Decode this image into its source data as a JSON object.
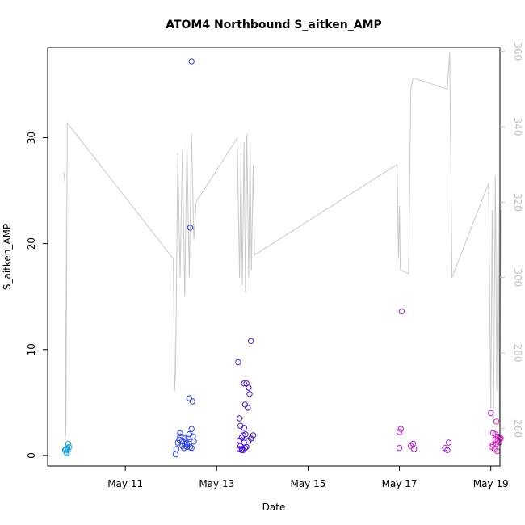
{
  "chart_data": {
    "type": "scatter",
    "title": "ATOM4 Northbound S_aitken_AMP",
    "xlabel": "Date",
    "ylabel": "S_aitken_AMP",
    "x_unit": "days since 2000-05-10 (May 11 = 1)",
    "xlim": [
      -0.7,
      9.2
    ],
    "ylim": [
      -1.0,
      38.5
    ],
    "y2lim": [
      250.0,
      361.0
    ],
    "x_ticks": [
      {
        "value": 1,
        "label": "May 11"
      },
      {
        "value": 3,
        "label": "May 13"
      },
      {
        "value": 5,
        "label": "May 15"
      },
      {
        "value": 7,
        "label": "May 17"
      },
      {
        "value": 9,
        "label": "May 19"
      }
    ],
    "y_ticks": [
      0,
      10,
      20,
      30
    ],
    "y2_ticks": [
      260,
      280,
      300,
      320,
      340,
      360
    ],
    "colors": {
      "line": "#c8c8c8",
      "frame": "#000000",
      "right_axis": "#c0c0c0"
    },
    "line_series": [
      [
        -0.35,
        328
      ],
      [
        -0.32,
        325
      ],
      [
        -0.3,
        258
      ],
      [
        -0.27,
        341
      ],
      [
        2.05,
        305
      ],
      [
        2.08,
        270
      ],
      [
        2.1,
        275
      ],
      [
        2.15,
        333
      ],
      [
        2.2,
        300
      ],
      [
        2.25,
        334
      ],
      [
        2.3,
        295
      ],
      [
        2.35,
        336
      ],
      [
        2.4,
        300
      ],
      [
        2.45,
        338
      ],
      [
        2.5,
        310
      ],
      [
        2.55,
        320
      ],
      [
        3.45,
        337
      ],
      [
        3.5,
        300
      ],
      [
        3.53,
        333
      ],
      [
        3.56,
        298
      ],
      [
        3.6,
        336
      ],
      [
        3.63,
        296
      ],
      [
        3.66,
        338
      ],
      [
        3.7,
        300
      ],
      [
        3.73,
        336
      ],
      [
        3.76,
        302
      ],
      [
        3.8,
        330
      ],
      [
        3.83,
        306
      ],
      [
        6.95,
        330
      ],
      [
        6.98,
        305
      ],
      [
        7.0,
        319
      ],
      [
        7.02,
        302
      ],
      [
        7.2,
        301
      ],
      [
        7.25,
        350
      ],
      [
        7.3,
        353
      ],
      [
        8.05,
        350
      ],
      [
        8.1,
        360
      ],
      [
        8.15,
        300
      ],
      [
        8.95,
        325
      ],
      [
        9.0,
        265
      ],
      [
        9.03,
        318
      ],
      [
        9.06,
        262
      ],
      [
        9.1,
        327
      ],
      [
        9.13,
        270
      ],
      [
        9.16,
        320
      ],
      [
        9.19,
        262
      ],
      [
        9.22,
        318
      ]
    ],
    "series": [
      {
        "name": "points",
        "color": "#18a8e8",
        "points": [
          [
            -0.32,
            0.5
          ],
          [
            -0.3,
            0.6
          ],
          [
            -0.29,
            0.3
          ],
          [
            -0.28,
            0.2
          ],
          [
            -0.27,
            0.7
          ],
          [
            -0.26,
            0.5
          ],
          [
            -0.25,
            1.1
          ],
          [
            -0.23,
            0.8
          ]
        ]
      },
      {
        "name": "points2",
        "color": "#2a40ee",
        "points": [
          [
            2.45,
            37.2
          ],
          [
            2.42,
            21.5
          ],
          [
            2.4,
            5.4
          ],
          [
            2.47,
            5.1
          ],
          [
            2.3,
            1.6
          ],
          [
            2.4,
            2.0
          ],
          [
            2.45,
            2.5
          ],
          [
            2.48,
            1.8
          ],
          [
            2.35,
            1.0
          ],
          [
            2.32,
            1.3
          ],
          [
            2.28,
            0.7
          ],
          [
            2.25,
            1.4
          ],
          [
            2.2,
            1.8
          ],
          [
            2.18,
            1.5
          ],
          [
            2.15,
            1.2
          ],
          [
            2.12,
            0.6
          ],
          [
            2.1,
            0.1
          ],
          [
            2.35,
            0.8
          ],
          [
            2.4,
            1.1
          ],
          [
            2.45,
            0.7
          ],
          [
            2.5,
            1.3
          ],
          [
            2.2,
            2.1
          ],
          [
            2.38,
            1.7
          ],
          [
            2.3,
            1.1
          ],
          [
            2.25,
            0.9
          ],
          [
            2.42,
            0.8
          ]
        ]
      },
      {
        "name": "points3",
        "color": "#4a14e0",
        "points": [
          [
            3.47,
            8.8
          ],
          [
            3.75,
            10.8
          ],
          [
            3.6,
            6.8
          ],
          [
            3.65,
            6.8
          ],
          [
            3.7,
            6.4
          ],
          [
            3.72,
            5.8
          ],
          [
            3.62,
            4.8
          ],
          [
            3.68,
            4.5
          ],
          [
            3.5,
            3.5
          ],
          [
            3.52,
            2.8
          ],
          [
            3.6,
            2.6
          ],
          [
            3.55,
            1.7
          ],
          [
            3.58,
            1.9
          ],
          [
            3.63,
            2.0
          ],
          [
            3.7,
            1.4
          ],
          [
            3.75,
            1.6
          ],
          [
            3.8,
            1.9
          ],
          [
            3.6,
            1.2
          ],
          [
            3.52,
            0.9
          ],
          [
            3.5,
            0.6
          ],
          [
            3.55,
            0.5
          ],
          [
            3.58,
            0.5
          ],
          [
            3.62,
            0.7
          ],
          [
            3.65,
            0.8
          ],
          [
            3.55,
            0.6
          ],
          [
            3.5,
            1.4
          ]
        ]
      },
      {
        "name": "points4",
        "color": "#b018d8",
        "points": [
          [
            7.05,
            13.6
          ],
          [
            7.0,
            2.2
          ],
          [
            7.03,
            2.5
          ],
          [
            7.0,
            0.7
          ],
          [
            7.3,
            1.1
          ],
          [
            7.25,
            0.9
          ],
          [
            7.32,
            0.6
          ],
          [
            8.0,
            0.7
          ],
          [
            8.05,
            0.5
          ],
          [
            8.08,
            1.2
          ]
        ]
      },
      {
        "name": "points5",
        "color": "#e028c8",
        "points": [
          [
            9.0,
            4.0
          ],
          [
            9.12,
            3.2
          ],
          [
            9.05,
            2.1
          ],
          [
            9.1,
            2.0
          ],
          [
            9.15,
            1.8
          ],
          [
            9.18,
            1.6
          ],
          [
            9.2,
            1.7
          ],
          [
            9.1,
            1.5
          ],
          [
            9.12,
            1.1
          ],
          [
            9.15,
            1.4
          ],
          [
            9.05,
            1.0
          ],
          [
            9.02,
            0.8
          ],
          [
            9.08,
            0.6
          ],
          [
            9.14,
            0.4
          ],
          [
            9.22,
            1.6
          ],
          [
            9.18,
            1.2
          ]
        ]
      }
    ]
  }
}
